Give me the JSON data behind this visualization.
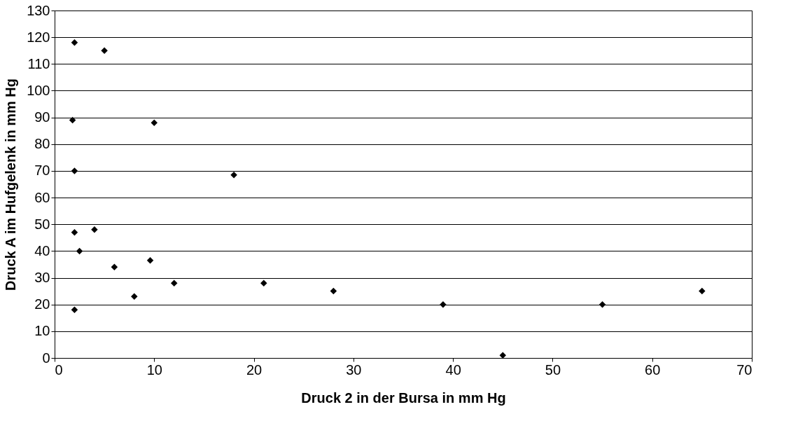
{
  "chart_data": {
    "type": "scatter",
    "xlabel": "Druck 2 in der Bursa in mm Hg",
    "ylabel": "Druck A im Hufgelenk in mm Hg",
    "x": [
      2,
      5,
      1.8,
      10,
      2,
      18,
      2,
      4,
      2.5,
      6,
      9.6,
      8,
      12,
      21,
      28,
      39,
      55,
      65,
      2,
      45
    ],
    "series": [
      {
        "color": "#000000",
        "values": [
          118,
          115,
          89,
          88,
          70,
          68.5,
          47,
          48,
          40,
          34,
          36.5,
          23,
          28,
          28,
          25,
          20,
          20,
          25,
          18,
          1
        ]
      }
    ],
    "xlim": [
      0,
      70
    ],
    "xticks": [
      0,
      10,
      20,
      30,
      40,
      50,
      60,
      70
    ],
    "ylim": [
      0,
      130
    ],
    "yticks": [
      0,
      10,
      20,
      30,
      40,
      50,
      60,
      70,
      80,
      90,
      100,
      110,
      120,
      130
    ],
    "grid": "y",
    "marker": "diamond"
  }
}
